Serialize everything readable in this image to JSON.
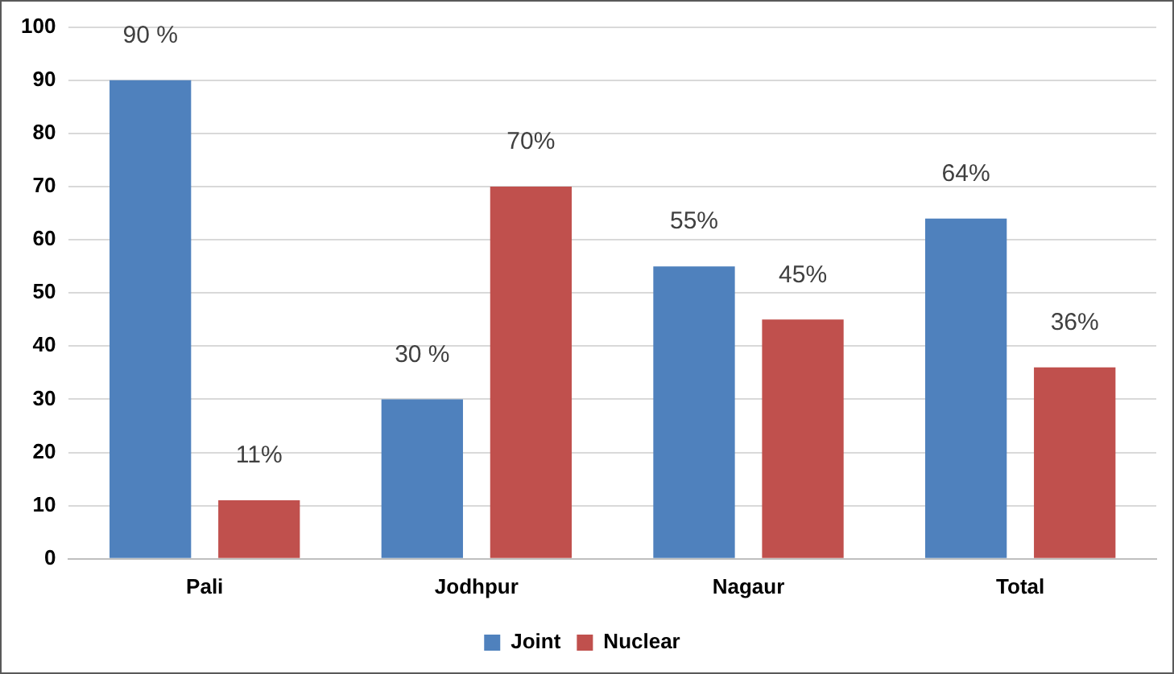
{
  "chart_data": {
    "type": "bar",
    "categories": [
      "Pali",
      "Jodhpur",
      "Nagaur",
      "Total"
    ],
    "series": [
      {
        "name": "Joint",
        "color": "#4f81bd",
        "values": [
          90,
          30,
          55,
          64
        ],
        "value_labels": [
          "90 %",
          "30 %",
          "55%",
          "64%"
        ]
      },
      {
        "name": "Nuclear",
        "color": "#c0504d",
        "values": [
          11,
          70,
          45,
          36
        ],
        "value_labels": [
          "11%",
          "70%",
          "45%",
          "36%"
        ]
      }
    ],
    "ylim": [
      0,
      100
    ],
    "yticks": [
      0,
      10,
      20,
      30,
      40,
      50,
      60,
      70,
      80,
      90,
      100
    ],
    "grid": "y",
    "legend": "bottom"
  }
}
